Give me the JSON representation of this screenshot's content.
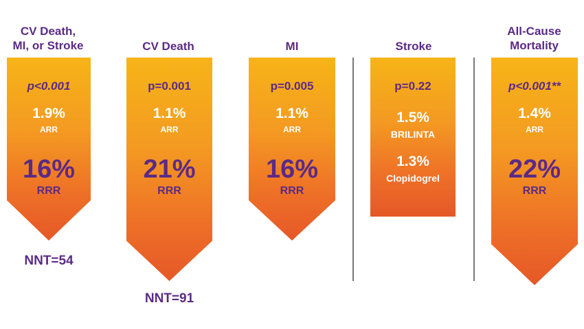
{
  "chart_data": {
    "type": "bar",
    "categories": [
      "CV Death, MI, or Stroke",
      "CV Death",
      "MI",
      "Stroke",
      "All-Cause Mortality"
    ],
    "columns": [
      {
        "title_lines": [
          "CV Death,",
          "MI, or Stroke"
        ],
        "p_value": "p<0.001",
        "arr": "1.9%",
        "arr_label": "ARR",
        "rrr": "16%",
        "rrr_label": "RRR",
        "nnt": "NNT=54"
      },
      {
        "title_lines": [
          "CV Death"
        ],
        "p_value": "p=0.001",
        "arr": "1.1%",
        "arr_label": "ARR",
        "rrr": "21%",
        "rrr_label": "RRR",
        "nnt": "NNT=91"
      },
      {
        "title_lines": [
          "MI"
        ],
        "p_value": "p=0.005",
        "arr": "1.1%",
        "arr_label": "ARR",
        "rrr": "16%",
        "rrr_label": "RRR"
      },
      {
        "title_lines": [
          "Stroke"
        ],
        "p_value": "p=0.22",
        "brilinta_value": "1.5%",
        "brilinta_label": "BRILINTA",
        "clopidogrel_value": "1.3%",
        "clopidogrel_label": "Clopidogrel"
      },
      {
        "title_lines": [
          "All-Cause",
          "Mortality"
        ],
        "p_value": "p<0.001**",
        "arr": "1.4%",
        "arr_label": "ARR",
        "rrr": "22%",
        "rrr_label": "RRR"
      }
    ],
    "colors": {
      "gradient_top": "#f6b417",
      "gradient_bottom": "#e55827",
      "text_purple": "#5b2a86",
      "text_white": "#ffffff"
    }
  }
}
